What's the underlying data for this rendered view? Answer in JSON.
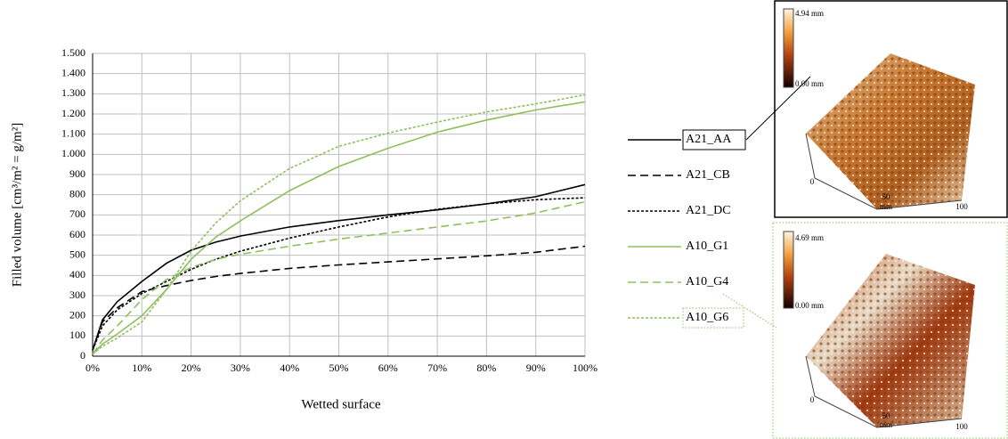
{
  "chart_data": {
    "type": "line",
    "y_label": "Filled volume [cm³/m² = g/m²]",
    "x_label": "Wetted surface",
    "x": [
      0,
      2,
      5,
      10,
      15,
      20,
      25,
      30,
      40,
      50,
      60,
      70,
      80,
      90,
      100
    ],
    "xlim": [
      0,
      100
    ],
    "xticks": [
      {
        "value": 0,
        "label": "0%"
      },
      {
        "value": 10,
        "label": "10%"
      },
      {
        "value": 20,
        "label": "20%"
      },
      {
        "value": 30,
        "label": "30%"
      },
      {
        "value": 40,
        "label": "40%"
      },
      {
        "value": 50,
        "label": "50%"
      },
      {
        "value": 60,
        "label": "60%"
      },
      {
        "value": 70,
        "label": "70%"
      },
      {
        "value": 80,
        "label": "80%"
      },
      {
        "value": 90,
        "label": "90%"
      },
      {
        "value": 100,
        "label": "100%"
      }
    ],
    "ylim": [
      0,
      1500
    ],
    "yticks": [
      0,
      100,
      200,
      300,
      400,
      500,
      600,
      700,
      800,
      900,
      {
        "value": 1000,
        "label": "1.000"
      },
      {
        "value": 1100,
        "label": "1.100"
      },
      {
        "value": 1200,
        "label": "1.200"
      },
      {
        "value": 1300,
        "label": "1.300"
      },
      {
        "value": 1400,
        "label": "1.400"
      },
      {
        "value": 1500,
        "label": "1.500"
      }
    ],
    "grid": true,
    "series": [
      {
        "name": "A21_AA",
        "color": "#000000",
        "dash": "solid",
        "values": [
          30,
          180,
          270,
          370,
          460,
          525,
          565,
          595,
          640,
          672,
          700,
          725,
          755,
          790,
          850
        ]
      },
      {
        "name": "A21_CB",
        "color": "#000000",
        "dash": "long",
        "values": [
          30,
          170,
          240,
          320,
          350,
          375,
          395,
          410,
          435,
          452,
          467,
          482,
          497,
          515,
          545
        ]
      },
      {
        "name": "A21_DC",
        "color": "#000000",
        "dash": "short",
        "values": [
          30,
          150,
          230,
          310,
          370,
          430,
          480,
          520,
          585,
          640,
          690,
          728,
          755,
          775,
          785
        ]
      },
      {
        "name": "A10_G1",
        "color": "#8fbf5c",
        "dash": "solid",
        "values": [
          10,
          60,
          110,
          200,
          330,
          480,
          590,
          670,
          820,
          940,
          1030,
          1110,
          1170,
          1220,
          1260
        ]
      },
      {
        "name": "A10_G4",
        "color": "#8fbf5c",
        "dash": "long",
        "values": [
          10,
          80,
          150,
          280,
          380,
          440,
          480,
          505,
          545,
          580,
          610,
          640,
          670,
          710,
          765
        ]
      },
      {
        "name": "A10_G6",
        "color": "#8fbf5c",
        "dash": "short",
        "values": [
          10,
          50,
          90,
          170,
          330,
          520,
          660,
          770,
          930,
          1040,
          1105,
          1160,
          1210,
          1250,
          1295
        ]
      }
    ],
    "insets": [
      {
        "max_label": "4.94 mm",
        "min_label": "0.00 mm",
        "axis_labels": [
          "0",
          "50",
          "100",
          "mm"
        ]
      },
      {
        "max_label": "4.69 mm",
        "min_label": "0.00 mm",
        "axis_labels": [
          "0",
          "50",
          "100",
          "mm"
        ]
      }
    ]
  }
}
